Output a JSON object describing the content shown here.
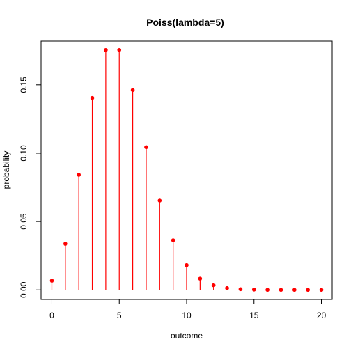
{
  "chart_data": {
    "type": "scatter",
    "title": "Poiss(lambda=5)",
    "xlabel": "outcome",
    "ylabel": "probability",
    "x": [
      0,
      1,
      2,
      3,
      4,
      5,
      6,
      7,
      8,
      9,
      10,
      11,
      12,
      13,
      14,
      15,
      16,
      17,
      18,
      19,
      20
    ],
    "values": [
      0.0067,
      0.0337,
      0.0842,
      0.1404,
      0.1755,
      0.1755,
      0.1462,
      0.1044,
      0.0653,
      0.0363,
      0.0181,
      0.0082,
      0.0034,
      0.0013,
      0.0005,
      0.0002,
      0.0,
      0.0,
      0.0,
      0.0,
      0.0
    ],
    "xlim": [
      -0.8,
      20.8
    ],
    "ylim": [
      -0.007,
      0.182
    ],
    "xticks": [
      "0",
      "5",
      "10",
      "15",
      "20"
    ],
    "yticks": [
      "0.00",
      "0.05",
      "0.10",
      "0.15"
    ],
    "grid": false,
    "color": "#ff0000"
  }
}
